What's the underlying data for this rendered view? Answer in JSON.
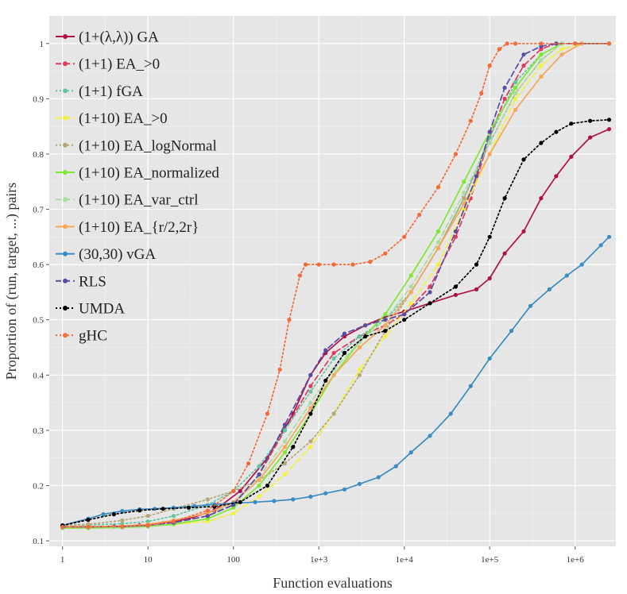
{
  "chart_data": {
    "type": "line",
    "title": "",
    "xlabel": "Function evaluations",
    "ylabel": "Proportion of (run, target, ...) pairs",
    "x_scale": "log10",
    "xlim": [
      0.7,
      3000000
    ],
    "ylim": [
      0.09,
      1.05
    ],
    "x_ticks": [
      {
        "value": 1,
        "label": "1"
      },
      {
        "value": 10,
        "label": "10"
      },
      {
        "value": 100,
        "label": "100"
      },
      {
        "value": 1000,
        "label": "1e+3"
      },
      {
        "value": 10000,
        "label": "1e+4"
      },
      {
        "value": 100000,
        "label": "1e+5"
      },
      {
        "value": 1000000,
        "label": "1e+6"
      }
    ],
    "y_ticks": [
      {
        "value": 0.1,
        "label": "0.1"
      },
      {
        "value": 0.2,
        "label": "0.2"
      },
      {
        "value": 0.3,
        "label": "0.3"
      },
      {
        "value": 0.4,
        "label": "0.4"
      },
      {
        "value": 0.5,
        "label": "0.5"
      },
      {
        "value": 0.6,
        "label": "0.6"
      },
      {
        "value": 0.7,
        "label": "0.7"
      },
      {
        "value": 0.8,
        "label": "0.8"
      },
      {
        "value": 0.9,
        "label": "0.9"
      },
      {
        "value": 1.0,
        "label": "1"
      }
    ],
    "grid": true,
    "legend_position": "top-left",
    "background_color": "#e6e6e6",
    "series": [
      {
        "name": "(1+(λ,λ)) GA",
        "color": "#b0104a",
        "dash": "solid",
        "x": [
          1,
          2,
          4,
          8,
          15,
          30,
          60,
          120,
          250,
          500,
          800,
          1200,
          2000,
          3500,
          6000,
          10000,
          20000,
          40000,
          70000,
          100000,
          150000,
          250000,
          400000,
          600000,
          900000,
          1500000,
          2500000
        ],
        "y": [
          0.125,
          0.125,
          0.126,
          0.128,
          0.132,
          0.14,
          0.155,
          0.19,
          0.25,
          0.33,
          0.4,
          0.44,
          0.47,
          0.49,
          0.505,
          0.515,
          0.53,
          0.545,
          0.555,
          0.575,
          0.62,
          0.66,
          0.72,
          0.76,
          0.795,
          0.83,
          0.845
        ]
      },
      {
        "name": "(1+1) EA_>0",
        "color": "#e03b5e",
        "dash": "dashed",
        "x": [
          1,
          2,
          5,
          10,
          20,
          50,
          100,
          200,
          400,
          800,
          1500,
          3000,
          6000,
          10000,
          20000,
          40000,
          60000,
          100000,
          150000,
          250000,
          400000,
          600000,
          1000000,
          2500000
        ],
        "y": [
          0.125,
          0.125,
          0.126,
          0.128,
          0.133,
          0.145,
          0.165,
          0.22,
          0.3,
          0.38,
          0.44,
          0.47,
          0.49,
          0.51,
          0.56,
          0.65,
          0.72,
          0.83,
          0.9,
          0.96,
          0.99,
          1.0,
          1.0,
          1.0
        ]
      },
      {
        "name": "(1+1) fGA",
        "color": "#60c4a2",
        "dash": "dotted",
        "x": [
          1,
          2,
          5,
          10,
          20,
          50,
          100,
          200,
          400,
          800,
          1500,
          3000,
          6000,
          12000,
          25000,
          50000,
          100000,
          200000,
          400000,
          700000,
          1000000,
          2500000
        ],
        "y": [
          0.128,
          0.129,
          0.131,
          0.135,
          0.145,
          0.165,
          0.19,
          0.235,
          0.3,
          0.37,
          0.43,
          0.47,
          0.5,
          0.55,
          0.63,
          0.72,
          0.83,
          0.93,
          0.98,
          1.0,
          1.0,
          1.0
        ]
      },
      {
        "name": "(1+10) EA_>0",
        "color": "#f2f23a",
        "dash": "dashed",
        "x": [
          1,
          2,
          5,
          10,
          20,
          50,
          100,
          200,
          400,
          800,
          1500,
          3000,
          6000,
          12000,
          25000,
          50000,
          100000,
          200000,
          400000,
          700000,
          1200000,
          2500000
        ],
        "y": [
          0.125,
          0.125,
          0.126,
          0.128,
          0.13,
          0.135,
          0.15,
          0.18,
          0.22,
          0.27,
          0.33,
          0.41,
          0.47,
          0.53,
          0.6,
          0.7,
          0.8,
          0.9,
          0.96,
          0.99,
          1.0,
          1.0
        ]
      },
      {
        "name": "(1+10) EA_logNormal",
        "color": "#b3a877",
        "dash": "dotted",
        "x": [
          1,
          2,
          5,
          10,
          20,
          50,
          100,
          200,
          400,
          800,
          1500,
          3000,
          6000,
          12000,
          25000,
          50000,
          100000,
          200000,
          400000,
          700000,
          1200000,
          2500000
        ],
        "y": [
          0.128,
          0.13,
          0.137,
          0.145,
          0.158,
          0.175,
          0.19,
          0.21,
          0.24,
          0.28,
          0.33,
          0.4,
          0.48,
          0.55,
          0.63,
          0.72,
          0.82,
          0.91,
          0.97,
          1.0,
          1.0,
          1.0
        ]
      },
      {
        "name": "(1+10) EA_normalized",
        "color": "#7de830",
        "dash": "solid",
        "x": [
          1,
          2,
          5,
          10,
          20,
          50,
          100,
          200,
          400,
          800,
          1500,
          3000,
          6000,
          12000,
          25000,
          50000,
          100000,
          200000,
          400000,
          700000,
          1200000,
          2500000
        ],
        "y": [
          0.123,
          0.123,
          0.124,
          0.126,
          0.13,
          0.14,
          0.16,
          0.2,
          0.26,
          0.33,
          0.4,
          0.46,
          0.51,
          0.58,
          0.66,
          0.75,
          0.84,
          0.92,
          0.98,
          1.0,
          1.0,
          1.0
        ]
      },
      {
        "name": "(1+10) EA_var_ctrl",
        "color": "#a8dca0",
        "dash": "dashed",
        "x": [
          1,
          2,
          5,
          10,
          20,
          50,
          100,
          200,
          400,
          800,
          1500,
          3000,
          6000,
          12000,
          25000,
          50000,
          100000,
          200000,
          400000,
          700000,
          1200000,
          2500000
        ],
        "y": [
          0.124,
          0.124,
          0.125,
          0.127,
          0.132,
          0.145,
          0.17,
          0.215,
          0.28,
          0.35,
          0.41,
          0.46,
          0.5,
          0.56,
          0.64,
          0.73,
          0.82,
          0.91,
          0.97,
          1.0,
          1.0,
          1.0
        ]
      },
      {
        "name": "(1+10) EA_{r/2,2r}",
        "color": "#f9a65a",
        "dash": "solid",
        "x": [
          1,
          2,
          5,
          10,
          20,
          50,
          100,
          200,
          400,
          800,
          1500,
          3000,
          6000,
          12000,
          25000,
          50000,
          100000,
          200000,
          400000,
          700000,
          1200000,
          2500000
        ],
        "y": [
          0.126,
          0.126,
          0.127,
          0.13,
          0.137,
          0.15,
          0.17,
          0.21,
          0.27,
          0.34,
          0.4,
          0.45,
          0.49,
          0.55,
          0.63,
          0.71,
          0.8,
          0.88,
          0.94,
          0.98,
          1.0,
          1.0
        ]
      },
      {
        "name": "(30,30) vGA",
        "color": "#3a8cc2",
        "dash": "solid",
        "x": [
          1,
          2,
          3,
          5,
          8,
          12,
          20,
          35,
          60,
          100,
          180,
          300,
          500,
          800,
          1200,
          2000,
          3000,
          5000,
          8000,
          12000,
          20000,
          35000,
          60000,
          100000,
          180000,
          300000,
          500000,
          800000,
          1200000,
          2000000,
          2500000
        ],
        "y": [
          0.128,
          0.14,
          0.148,
          0.154,
          0.157,
          0.158,
          0.16,
          0.163,
          0.166,
          0.168,
          0.17,
          0.172,
          0.175,
          0.18,
          0.186,
          0.193,
          0.203,
          0.215,
          0.235,
          0.26,
          0.29,
          0.33,
          0.38,
          0.43,
          0.48,
          0.525,
          0.555,
          0.58,
          0.6,
          0.635,
          0.65
        ]
      },
      {
        "name": "RLS",
        "color": "#5a4ba0",
        "dash": "dashed",
        "x": [
          1,
          2,
          5,
          10,
          20,
          50,
          100,
          200,
          400,
          800,
          1200,
          2000,
          3500,
          6000,
          10000,
          20000,
          40000,
          70000,
          100000,
          150000,
          250000,
          400000,
          600000,
          1000000,
          2500000
        ],
        "y": [
          0.125,
          0.125,
          0.126,
          0.128,
          0.133,
          0.145,
          0.165,
          0.22,
          0.31,
          0.4,
          0.445,
          0.475,
          0.49,
          0.5,
          0.51,
          0.55,
          0.66,
          0.76,
          0.84,
          0.92,
          0.98,
          0.995,
          1.0,
          1.0,
          1.0
        ]
      },
      {
        "name": "UMDA",
        "color": "#000000",
        "dash": "dotted",
        "x": [
          1,
          2,
          4,
          8,
          15,
          30,
          60,
          120,
          250,
          500,
          800,
          1200,
          2000,
          3500,
          6000,
          10000,
          20000,
          40000,
          70000,
          100000,
          150000,
          250000,
          400000,
          600000,
          900000,
          1500000,
          2500000
        ],
        "y": [
          0.128,
          0.138,
          0.148,
          0.155,
          0.158,
          0.16,
          0.162,
          0.17,
          0.2,
          0.27,
          0.33,
          0.39,
          0.44,
          0.47,
          0.48,
          0.5,
          0.53,
          0.56,
          0.6,
          0.65,
          0.72,
          0.79,
          0.82,
          0.84,
          0.855,
          0.86,
          0.862
        ]
      },
      {
        "name": "gHC",
        "color": "#f26b38",
        "dash": "dotted",
        "x": [
          1,
          2,
          5,
          10,
          20,
          50,
          100,
          150,
          250,
          350,
          450,
          600,
          700,
          1000,
          1500,
          2500,
          4000,
          6000,
          10000,
          15000,
          25000,
          40000,
          60000,
          80000,
          100000,
          130000,
          160000,
          200000,
          400000,
          1000000,
          2500000
        ],
        "y": [
          0.125,
          0.125,
          0.126,
          0.128,
          0.135,
          0.155,
          0.19,
          0.24,
          0.33,
          0.41,
          0.5,
          0.58,
          0.6,
          0.6,
          0.6,
          0.6,
          0.605,
          0.62,
          0.65,
          0.69,
          0.74,
          0.8,
          0.86,
          0.91,
          0.96,
          0.99,
          1.0,
          1.0,
          1.0,
          1.0,
          1.0
        ]
      }
    ]
  }
}
